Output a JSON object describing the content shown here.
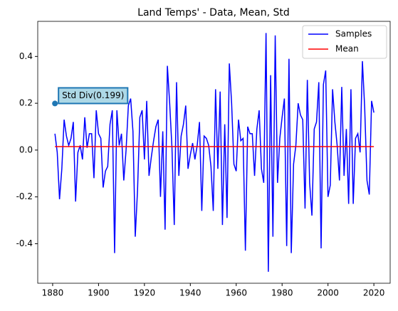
{
  "chart_data": {
    "type": "line",
    "title": "Land Temps' - Data, Mean, Std",
    "series": [
      {
        "name": "Samples",
        "color": "#0000ff",
        "x": [
          1881,
          1882,
          1883,
          1884,
          1885,
          1886,
          1887,
          1888,
          1889,
          1890,
          1891,
          1892,
          1893,
          1894,
          1895,
          1896,
          1897,
          1898,
          1899,
          1900,
          1901,
          1902,
          1903,
          1904,
          1905,
          1906,
          1907,
          1908,
          1909,
          1910,
          1911,
          1912,
          1913,
          1914,
          1915,
          1916,
          1917,
          1918,
          1919,
          1920,
          1921,
          1922,
          1923,
          1924,
          1925,
          1926,
          1927,
          1928,
          1929,
          1930,
          1931,
          1932,
          1933,
          1934,
          1935,
          1936,
          1937,
          1938,
          1939,
          1940,
          1941,
          1942,
          1943,
          1944,
          1945,
          1946,
          1947,
          1948,
          1949,
          1950,
          1951,
          1952,
          1953,
          1954,
          1955,
          1956,
          1957,
          1958,
          1959,
          1960,
          1961,
          1962,
          1963,
          1964,
          1965,
          1966,
          1967,
          1968,
          1969,
          1970,
          1971,
          1972,
          1973,
          1974,
          1975,
          1976,
          1977,
          1978,
          1979,
          1980,
          1981,
          1982,
          1983,
          1984,
          1985,
          1986,
          1987,
          1988,
          1989,
          1990,
          1991,
          1992,
          1993,
          1994,
          1995,
          1996,
          1997,
          1998,
          1999,
          2000,
          2001,
          2002,
          2003,
          2004,
          2005,
          2006,
          2007,
          2008,
          2009,
          2010,
          2011,
          2012,
          2013,
          2014,
          2015,
          2016,
          2017,
          2018,
          2019,
          2020
        ],
        "values": [
          0.07,
          -0.01,
          -0.21,
          -0.08,
          0.13,
          0.06,
          0.02,
          0.05,
          0.12,
          -0.22,
          -0.01,
          0.02,
          -0.04,
          0.14,
          0.01,
          0.07,
          0.07,
          -0.12,
          0.17,
          0.07,
          0.05,
          -0.16,
          -0.09,
          -0.07,
          0.11,
          0.17,
          -0.44,
          0.17,
          0.02,
          0.07,
          -0.13,
          0.0,
          0.19,
          0.22,
          0.08,
          -0.37,
          -0.17,
          0.14,
          0.17,
          -0.04,
          0.21,
          -0.11,
          -0.03,
          0.04,
          0.1,
          0.13,
          -0.2,
          0.08,
          -0.34,
          0.36,
          0.2,
          0.01,
          -0.32,
          0.29,
          -0.11,
          0.06,
          0.11,
          0.19,
          -0.08,
          -0.02,
          0.03,
          -0.04,
          0.02,
          0.12,
          -0.26,
          0.06,
          0.05,
          0.02,
          -0.07,
          -0.26,
          0.26,
          -0.08,
          0.25,
          -0.32,
          0.11,
          -0.29,
          0.37,
          0.2,
          -0.06,
          -0.09,
          0.13,
          0.04,
          0.05,
          -0.43,
          0.1,
          0.07,
          0.07,
          -0.11,
          0.09,
          0.17,
          -0.08,
          -0.14,
          0.5,
          -0.52,
          0.32,
          -0.37,
          0.49,
          -0.14,
          0.05,
          0.14,
          0.22,
          -0.41,
          0.39,
          -0.44,
          -0.06,
          0.02,
          0.2,
          0.15,
          0.13,
          -0.25,
          0.3,
          -0.14,
          -0.28,
          0.09,
          0.12,
          0.29,
          -0.42,
          0.28,
          0.34,
          -0.2,
          -0.15,
          0.26,
          0.12,
          0.02,
          -0.13,
          0.27,
          -0.11,
          0.09,
          -0.23,
          0.26,
          -0.23,
          0.05,
          0.07,
          -0.01,
          0.38,
          0.18,
          -0.13,
          -0.19,
          0.21,
          0.16
        ]
      },
      {
        "name": "Mean",
        "color": "#ff0000",
        "x": [
          1881,
          2020
        ],
        "values": [
          0.015,
          0.015
        ]
      }
    ],
    "annotation": {
      "text": "Std Div(0.199)",
      "x": 1881,
      "y": 0.199,
      "color": "#1f77b4"
    },
    "xlim": [
      1873.5,
      2027.1
    ],
    "xticks": [
      1880,
      1900,
      1920,
      1940,
      1960,
      1980,
      2000,
      2020
    ],
    "ylim": [
      -0.569,
      0.55
    ],
    "yticks": [
      -0.4,
      -0.2,
      {
        "value": 0,
        "label": "0.0"
      },
      0.2,
      0.4
    ],
    "legend": "upper right"
  }
}
